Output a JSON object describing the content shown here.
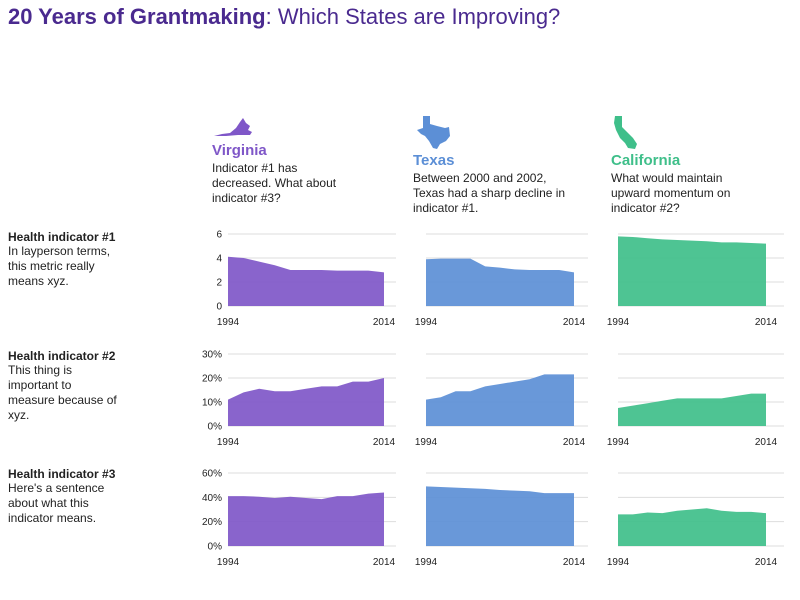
{
  "title": {
    "bold": "20 Years of Grantmaking",
    "rest": ": Which States are Improving?"
  },
  "colors": {
    "title": "#4a2a8f",
    "virginia": "#7f57c8",
    "texas": "#5c8fd6",
    "california": "#3fbf8a",
    "grid": "#dddddd"
  },
  "states": [
    {
      "key": "virginia",
      "name": "Virginia",
      "icon": "virginia-map-icon",
      "note": [
        "Indicator #1 has",
        "decreased. What about",
        "indicator #3?"
      ]
    },
    {
      "key": "texas",
      "name": "Texas",
      "icon": "texas-map-icon",
      "note": [
        "Between 2000 and 2002,",
        "Texas had a sharp decline in",
        "indicator #1."
      ]
    },
    {
      "key": "california",
      "name": "California",
      "icon": "california-map-icon",
      "note": [
        "What would maintain",
        "upward momentum on",
        "indicator #2?"
      ]
    }
  ],
  "indicators": [
    {
      "title": "Health indicator #1",
      "desc": [
        "In layperson terms,",
        "this metric really",
        "means xyz."
      ]
    },
    {
      "title": "Health indicator #2",
      "desc": [
        "This thing is",
        "important to",
        "measure because of",
        "xyz."
      ]
    },
    {
      "title": "Health indicator #3",
      "desc": [
        "Here's a sentence",
        "about what this",
        "indicator means."
      ]
    }
  ],
  "chart_data": [
    {
      "type": "area",
      "title": "Health indicator #1",
      "x": [
        1994,
        1996,
        1998,
        2000,
        2002,
        2004,
        2006,
        2008,
        2010,
        2012,
        2014
      ],
      "xticks": [
        "1994",
        "2014"
      ],
      "ylim": [
        0,
        6
      ],
      "yticks": [
        "0",
        "2",
        "4",
        "6"
      ],
      "series": [
        {
          "name": "Virginia",
          "values": [
            4.1,
            4.0,
            3.7,
            3.4,
            3.0,
            3.0,
            3.0,
            2.95,
            2.95,
            2.95,
            2.8
          ]
        },
        {
          "name": "Texas",
          "values": [
            3.9,
            3.95,
            3.95,
            3.95,
            3.3,
            3.2,
            3.05,
            3.0,
            3.0,
            3.0,
            2.8
          ]
        },
        {
          "name": "California",
          "values": [
            5.8,
            5.75,
            5.65,
            5.55,
            5.5,
            5.45,
            5.4,
            5.3,
            5.3,
            5.25,
            5.2
          ]
        }
      ]
    },
    {
      "type": "area",
      "title": "Health indicator #2",
      "x": [
        1994,
        1996,
        1998,
        2000,
        2002,
        2004,
        2006,
        2008,
        2010,
        2012,
        2014
      ],
      "xticks": [
        "1994",
        "2014"
      ],
      "ylim": [
        0,
        30
      ],
      "yticks": [
        "0%",
        "10%",
        "20%",
        "30%"
      ],
      "series": [
        {
          "name": "Virginia",
          "values": [
            11,
            14,
            15.5,
            14.5,
            14.5,
            15.5,
            16.5,
            16.5,
            18.5,
            18.5,
            20
          ]
        },
        {
          "name": "Texas",
          "values": [
            11,
            12,
            14.5,
            14.5,
            16.5,
            17.5,
            18.5,
            19.5,
            21.5,
            21.5,
            21.5
          ]
        },
        {
          "name": "California",
          "values": [
            7.5,
            8.5,
            9.5,
            10.5,
            11.5,
            11.5,
            11.5,
            11.5,
            12.5,
            13.5,
            13.5
          ]
        }
      ]
    },
    {
      "type": "area",
      "title": "Health indicator #3",
      "x": [
        1994,
        1996,
        1998,
        2000,
        2002,
        2004,
        2006,
        2008,
        2010,
        2012,
        2014
      ],
      "xticks": [
        "1994",
        "2014"
      ],
      "ylim": [
        0,
        60
      ],
      "yticks": [
        "0%",
        "20%",
        "40%",
        "60%"
      ],
      "series": [
        {
          "name": "Virginia",
          "values": [
            41,
            41,
            40.5,
            39.5,
            40.5,
            39.5,
            38.5,
            41,
            41,
            43,
            44
          ]
        },
        {
          "name": "Texas",
          "values": [
            49,
            48.5,
            48,
            47.5,
            47,
            46,
            45.5,
            45,
            43.5,
            43.5,
            43.5
          ]
        },
        {
          "name": "California",
          "values": [
            26,
            26,
            27.5,
            27,
            29,
            30,
            31,
            29,
            28,
            28,
            27
          ]
        }
      ]
    }
  ]
}
